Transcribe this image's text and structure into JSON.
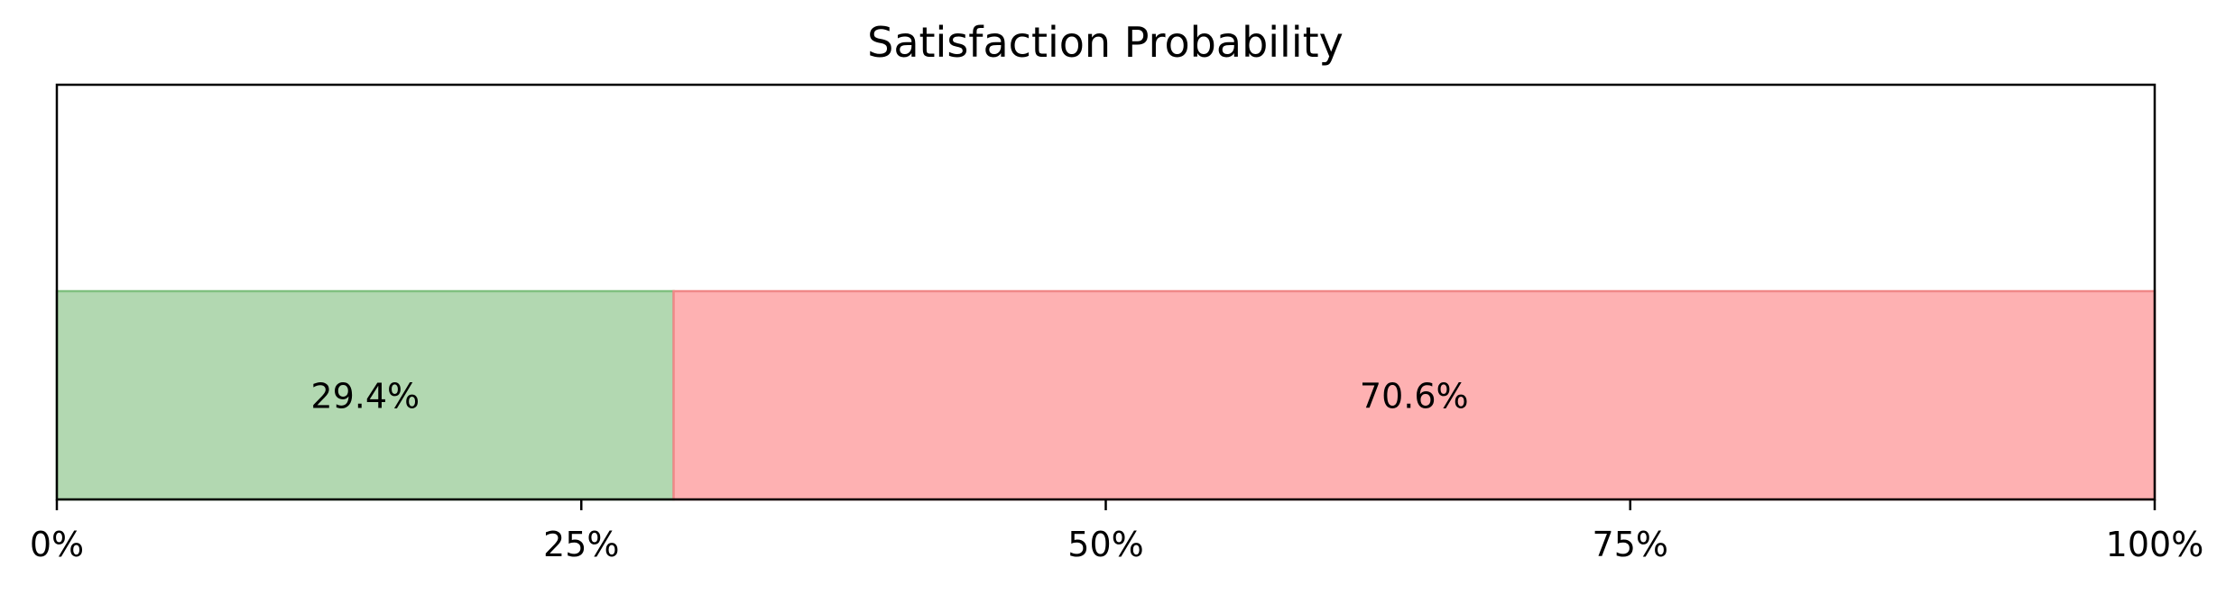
{
  "chart_data": {
    "type": "bar",
    "orientation": "horizontal-stacked",
    "title": "Satisfaction Probability",
    "xlabel": "",
    "ylabel": "",
    "xlim": [
      0,
      100
    ],
    "x_ticks": [
      "0%",
      "25%",
      "50%",
      "75%",
      "100%"
    ],
    "x_tick_values": [
      0,
      25,
      50,
      75,
      100
    ],
    "grid": false,
    "legend": "none",
    "series": [
      {
        "value": 29.4,
        "label": "29.4%",
        "color": "#b2d8b1",
        "edge_color": "#80c080"
      },
      {
        "value": 70.6,
        "label": "70.6%",
        "color": "#feb1b2",
        "edge_color": "#f08888"
      }
    ]
  }
}
